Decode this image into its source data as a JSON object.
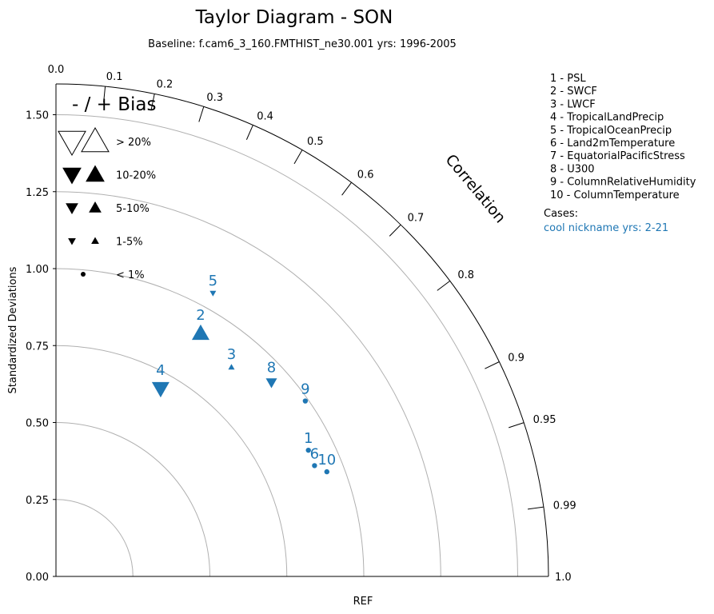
{
  "chart_data": {
    "type": "scatter",
    "subtype": "taylor-diagram",
    "title": "Taylor Diagram - SON",
    "subtitle": "Baseline: f.cam6_3_160.FMTHIST_ne30.001  yrs: 1996-2005",
    "ylabel": "Standardized Deviations",
    "xlabel": "REF",
    "corr_axis_label": "Correlation",
    "std_range": [
      0,
      1.6
    ],
    "std_ticks": [
      "0.00",
      "0.25",
      "0.50",
      "0.75",
      "1.00",
      "1.25",
      "1.50"
    ],
    "std_tick_values": [
      0,
      0.25,
      0.5,
      0.75,
      1.0,
      1.25,
      1.5
    ],
    "std_arc_values": [
      0.25,
      0.5,
      0.75,
      1.0,
      1.25,
      1.5
    ],
    "corr_ticks": [
      {
        "value": 0.0,
        "label": "0.0"
      },
      {
        "value": 0.1,
        "label": "0.1"
      },
      {
        "value": 0.2,
        "label": "0.2"
      },
      {
        "value": 0.3,
        "label": "0.3"
      },
      {
        "value": 0.4,
        "label": "0.4"
      },
      {
        "value": 0.5,
        "label": "0.5"
      },
      {
        "value": 0.6,
        "label": "0.6"
      },
      {
        "value": 0.7,
        "label": "0.7"
      },
      {
        "value": 0.8,
        "label": "0.8"
      },
      {
        "value": 0.9,
        "label": "0.9"
      },
      {
        "value": 0.95,
        "label": "0.95"
      },
      {
        "value": 0.99,
        "label": "0.99"
      },
      {
        "value": 1.0,
        "label": "1.0"
      }
    ],
    "grid": true,
    "bias_legend": {
      "title": "- / + Bias",
      "entries": [
        {
          "label": "> 20%",
          "size": "xl",
          "open": true
        },
        {
          "label": "10-20%",
          "size": "l",
          "open": false
        },
        {
          "label": "5-10%",
          "size": "m",
          "open": false
        },
        {
          "label": "1-5%",
          "size": "s",
          "open": false
        },
        {
          "label": "< 1%",
          "size": "dot",
          "open": false
        }
      ]
    },
    "variables": [
      "1 - PSL",
      "2 - SWCF",
      "3 - LWCF",
      "4 - TropicalLandPrecip",
      "5 - TropicalOceanPrecip",
      "6 - Land2mTemperature",
      "7 - EquatorialPacificStress",
      "8 - U300",
      "9 - ColumnRelativeHumidity",
      "10 - ColumnTemperature"
    ],
    "cases_label": "Cases:",
    "series": [
      {
        "name": "cool nickname  yrs: 2-21",
        "color": "#1f77b4",
        "points": [
          {
            "label": "1",
            "x": 0.82,
            "y": 0.41,
            "marker": "dot"
          },
          {
            "label": "2",
            "x": 0.47,
            "y": 0.79,
            "marker": "up",
            "size": "l"
          },
          {
            "label": "3",
            "x": 0.57,
            "y": 0.68,
            "marker": "up",
            "size": "s"
          },
          {
            "label": "4",
            "x": 0.34,
            "y": 0.61,
            "marker": "down",
            "size": "l"
          },
          {
            "label": "5",
            "x": 0.51,
            "y": 0.92,
            "marker": "down",
            "size": "s"
          },
          {
            "label": "6",
            "x": 0.84,
            "y": 0.36,
            "marker": "dot"
          },
          {
            "label": "8",
            "x": 0.7,
            "y": 0.63,
            "marker": "down",
            "size": "m"
          },
          {
            "label": "9",
            "x": 0.81,
            "y": 0.57,
            "marker": "dot"
          },
          {
            "label": "10",
            "x": 0.88,
            "y": 0.34,
            "marker": "dot"
          }
        ]
      }
    ]
  }
}
